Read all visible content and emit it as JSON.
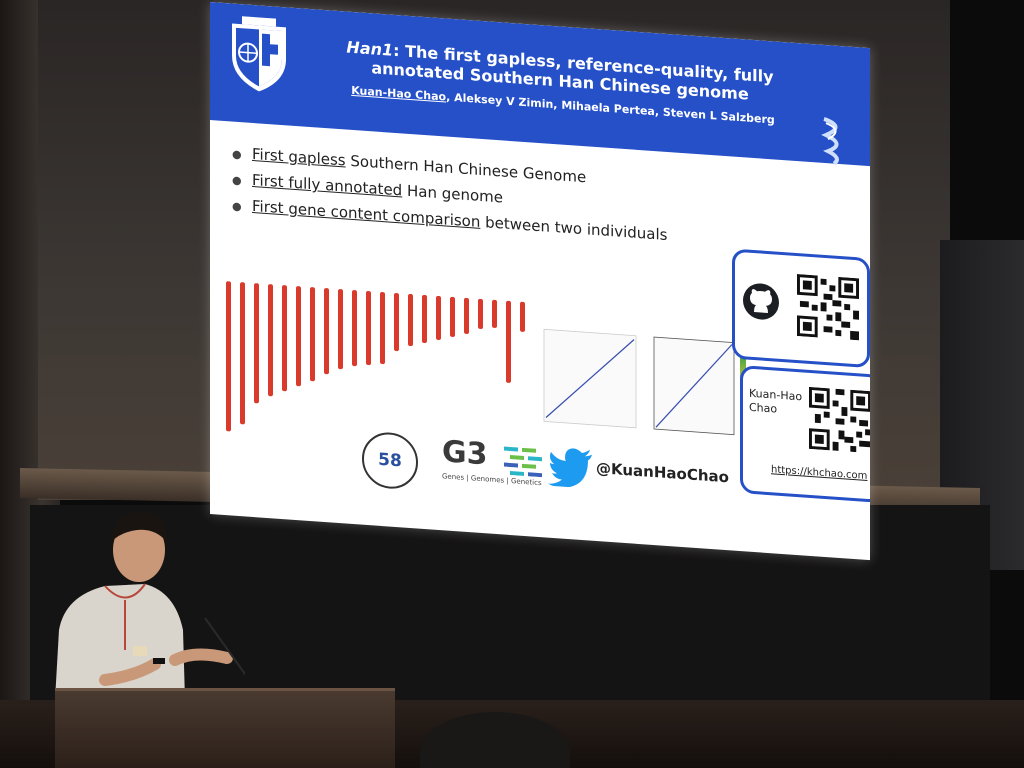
{
  "slide": {
    "title_gene": "Han1",
    "title_rest_line1": ": The first gapless, reference-quality, fully",
    "title_line2": "annotated Southern Han Chinese genome",
    "first_author": "Kuan-Hao Chao",
    "other_authors": ", Aleksey V Zimin, Mihaela Pertea, Steven L Salzberg",
    "bullets": [
      {
        "emphasis": "First gapless",
        "rest": " Southern Han Chinese Genome"
      },
      {
        "emphasis": "First fully annotated",
        "rest": " Han genome"
      },
      {
        "emphasis": "First gene content comparison",
        "rest": " between two individuals"
      }
    ],
    "poster_number": "58",
    "journal_logo": "G3",
    "journal_subtitle": "Genes | Genomes | Genetics",
    "twitter_handle": "@KuanHaoChao",
    "contact_name": "Kuan-Hao Chao",
    "contact_url": "https://khchao.com",
    "icons": [
      "university-crest-icon",
      "dna-helix-icon",
      "github-icon",
      "twitter-bird-icon",
      "qr-code-icon"
    ],
    "colors": {
      "header": "#2550c8",
      "chromosome": "#d93a2b",
      "text": "#222222"
    }
  }
}
